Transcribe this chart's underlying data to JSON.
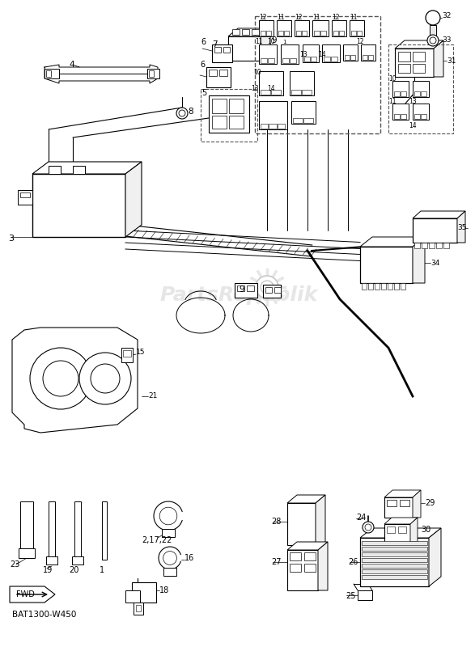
{
  "bg_color": "#ffffff",
  "line_color": "#000000",
  "part_code": "BAT1300-W450",
  "figsize": [
    5.87,
    8.0
  ],
  "dpi": 100,
  "watermark_text": "PartsRepublik",
  "watermark_color": "#c8c8c8",
  "watermark_alpha": 0.45
}
